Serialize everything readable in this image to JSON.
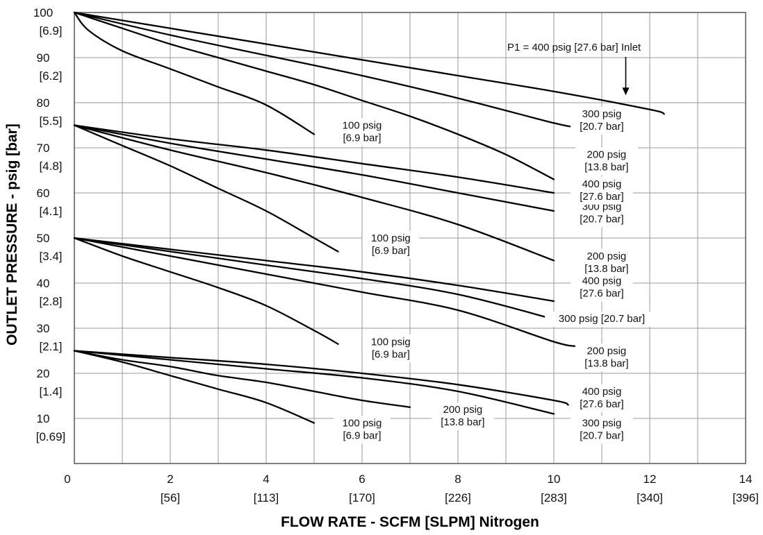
{
  "chart_data": {
    "type": "line",
    "xlabel": "FLOW RATE - SCFM [SLPM] Nitrogen",
    "ylabel": "OUTLET PRESSURE - psig [bar]",
    "xlim": [
      0,
      14
    ],
    "ylim": [
      0,
      100
    ],
    "grid": true,
    "x_ticks": [
      {
        "value": 0,
        "line1": "0",
        "line2": ""
      },
      {
        "value": 2,
        "line1": "2",
        "line2": "[56]"
      },
      {
        "value": 4,
        "line1": "4",
        "line2": "[113]"
      },
      {
        "value": 6,
        "line1": "6",
        "line2": "[170]"
      },
      {
        "value": 8,
        "line1": "8",
        "line2": "[226]"
      },
      {
        "value": 10,
        "line1": "10",
        "line2": "[283]"
      },
      {
        "value": 12,
        "line1": "12",
        "line2": "[340]"
      },
      {
        "value": 14,
        "line1": "14",
        "line2": "[396]"
      }
    ],
    "y_ticks": [
      {
        "value": 100,
        "line1": "100",
        "line2": "[6.9]"
      },
      {
        "value": 90,
        "line1": "90",
        "line2": "[6.2]"
      },
      {
        "value": 80,
        "line1": "80",
        "line2": "[5.5]"
      },
      {
        "value": 70,
        "line1": "70",
        "line2": "[4.8]"
      },
      {
        "value": 60,
        "line1": "60",
        "line2": "[4.1]"
      },
      {
        "value": 50,
        "line1": "50",
        "line2": "[3.4]"
      },
      {
        "value": 40,
        "line1": "40",
        "line2": "[2.8]"
      },
      {
        "value": 30,
        "line1": "30",
        "line2": "[2.1]"
      },
      {
        "value": 20,
        "line1": "20",
        "line2": "[1.4]"
      },
      {
        "value": 10,
        "line1": "10",
        "line2": "[0.69]"
      }
    ],
    "annotation": {
      "text": "P1 = 400 psig [27.6 bar] Inlet",
      "arrow_to": [
        11.5,
        81.5
      ]
    },
    "series": [
      {
        "group": 100,
        "points": [
          [
            0,
            100
          ],
          [
            0.3,
            96
          ],
          [
            1,
            91.5
          ],
          [
            2,
            87.5
          ],
          [
            3,
            83.5
          ],
          [
            4,
            79.5
          ],
          [
            5,
            73
          ]
        ],
        "label": [
          "100 psig",
          "[6.9 bar]"
        ],
        "label_at": [
          6.0,
          73.5
        ]
      },
      {
        "group": 100,
        "points": [
          [
            0,
            100
          ],
          [
            1,
            96.5
          ],
          [
            2,
            93
          ],
          [
            3,
            90
          ],
          [
            4,
            87
          ],
          [
            5,
            84
          ],
          [
            6,
            80.5
          ],
          [
            7,
            77
          ],
          [
            8,
            73
          ],
          [
            9,
            68.5
          ],
          [
            10,
            63
          ]
        ],
        "label": [
          "200 psig",
          "[13.8 bar]"
        ],
        "label_at": [
          11.1,
          67
        ]
      },
      {
        "group": 100,
        "points": [
          [
            0,
            100
          ],
          [
            2,
            95
          ],
          [
            4,
            90.5
          ],
          [
            6,
            86
          ],
          [
            8,
            81
          ],
          [
            10,
            75.5
          ],
          [
            10.5,
            74.5
          ]
        ],
        "label": [
          "300 psig",
          "[20.7 bar]"
        ],
        "label_at": [
          11.0,
          76
        ]
      },
      {
        "group": 100,
        "points": [
          [
            0,
            100
          ],
          [
            2,
            96.5
          ],
          [
            4,
            93
          ],
          [
            6,
            89.5
          ],
          [
            8,
            86
          ],
          [
            10,
            82.5
          ],
          [
            12,
            78.5
          ],
          [
            12.3,
            77.5
          ]
        ],
        "label": [],
        "label_at": []
      },
      {
        "group": 75,
        "points": [
          [
            0,
            75
          ],
          [
            1,
            70.5
          ],
          [
            2,
            66
          ],
          [
            3,
            61
          ],
          [
            4,
            56
          ],
          [
            5,
            50
          ],
          [
            5.5,
            47
          ]
        ],
        "label": [
          "100 psig",
          "[6.9 bar]"
        ],
        "label_at": [
          6.6,
          48.5
        ]
      },
      {
        "group": 75,
        "points": [
          [
            0,
            75
          ],
          [
            2,
            69.5
          ],
          [
            4,
            64.5
          ],
          [
            6,
            59
          ],
          [
            8,
            53
          ],
          [
            10,
            45
          ]
        ],
        "label": [
          "200 psig",
          "[13.8 bar]"
        ],
        "label_at": [
          11.1,
          44.5
        ]
      },
      {
        "group": 75,
        "points": [
          [
            0,
            75
          ],
          [
            2,
            71
          ],
          [
            4,
            67.5
          ],
          [
            6,
            64
          ],
          [
            8,
            60
          ],
          [
            10,
            56
          ]
        ],
        "label": [
          "300 psig",
          "[20.7 bar]"
        ],
        "label_at": [
          11.0,
          55.5
        ]
      },
      {
        "group": 75,
        "points": [
          [
            0,
            75
          ],
          [
            2,
            72
          ],
          [
            4,
            69.5
          ],
          [
            6,
            66.5
          ],
          [
            8,
            63.5
          ],
          [
            10,
            60
          ]
        ],
        "label": [
          "400 psig",
          "[27.6 bar]"
        ],
        "label_at": [
          11.0,
          60.5
        ]
      },
      {
        "group": 50,
        "points": [
          [
            0,
            50
          ],
          [
            1,
            46
          ],
          [
            2,
            42.5
          ],
          [
            3,
            39
          ],
          [
            4,
            35
          ],
          [
            5,
            29.5
          ],
          [
            5.5,
            26.5
          ]
        ],
        "label": [
          "100 psig",
          "[6.9 bar]"
        ],
        "label_at": [
          6.6,
          25.5
        ]
      },
      {
        "group": 50,
        "points": [
          [
            0,
            50
          ],
          [
            2,
            46
          ],
          [
            4,
            42
          ],
          [
            6,
            38
          ],
          [
            8,
            34
          ],
          [
            10,
            27
          ],
          [
            10.5,
            26
          ]
        ],
        "label": [
          "200 psig",
          "[13.8 bar]"
        ],
        "label_at": [
          11.1,
          23.5
        ]
      },
      {
        "group": 50,
        "points": [
          [
            0,
            50
          ],
          [
            2,
            47
          ],
          [
            4,
            44
          ],
          [
            6,
            41
          ],
          [
            8,
            37.5
          ],
          [
            10,
            32
          ]
        ],
        "label": [
          "300 psig [20.7 bar]"
        ],
        "label_at": [
          11.0,
          32
        ]
      },
      {
        "group": 50,
        "points": [
          [
            0,
            50
          ],
          [
            2,
            47.5
          ],
          [
            4,
            45
          ],
          [
            6,
            42.5
          ],
          [
            8,
            39.5
          ],
          [
            10,
            36
          ]
        ],
        "label": [
          "400 psig",
          "[27.6 bar]"
        ],
        "label_at": [
          11.0,
          39
        ]
      },
      {
        "group": 25,
        "points": [
          [
            0,
            25
          ],
          [
            1,
            22.5
          ],
          [
            2,
            19.5
          ],
          [
            3,
            16.5
          ],
          [
            4,
            13.5
          ],
          [
            5,
            9
          ]
        ],
        "label": [
          "100 psig",
          "[6.9 bar]"
        ],
        "label_at": [
          6.0,
          7.5
        ]
      },
      {
        "group": 25,
        "points": [
          [
            0,
            25
          ],
          [
            1,
            23
          ],
          [
            2,
            21.5
          ],
          [
            3,
            19.5
          ],
          [
            4,
            18
          ],
          [
            5,
            16
          ],
          [
            6,
            14
          ],
          [
            7,
            12.5
          ]
        ],
        "label": [
          "200 psig",
          "[13.8 bar]"
        ],
        "label_at": [
          8.1,
          10.5
        ]
      },
      {
        "group": 25,
        "points": [
          [
            0,
            25
          ],
          [
            2,
            23
          ],
          [
            4,
            21
          ],
          [
            6,
            19
          ],
          [
            8,
            16
          ],
          [
            10,
            11
          ]
        ],
        "label": [
          "300 psig",
          "[20.7 bar]"
        ],
        "label_at": [
          11.0,
          7.5
        ]
      },
      {
        "group": 25,
        "points": [
          [
            0,
            25
          ],
          [
            2,
            23.5
          ],
          [
            4,
            22
          ],
          [
            6,
            20
          ],
          [
            8,
            17.5
          ],
          [
            10,
            14
          ],
          [
            10.3,
            13
          ]
        ],
        "label": [
          "400 psig",
          "[27.6 bar]"
        ],
        "label_at": [
          11.0,
          14.5
        ]
      }
    ]
  }
}
